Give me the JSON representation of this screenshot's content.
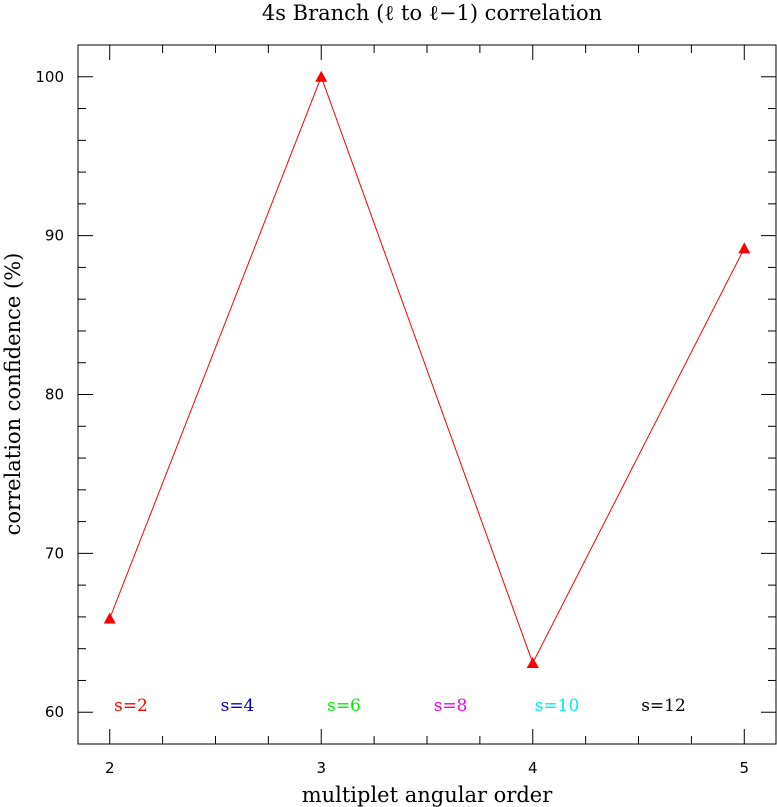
{
  "chart_data": {
    "type": "line",
    "title": "4s Branch (ℓ to ℓ−1) correlation",
    "xlabel": "multiplet angular order",
    "ylabel": "correlation confidence (%)",
    "xlim": [
      1.85,
      5.15
    ],
    "ylim": [
      58,
      102
    ],
    "xticks": [
      2,
      3,
      4,
      5
    ],
    "yticks": [
      60,
      70,
      80,
      90,
      100
    ],
    "grid": false,
    "series": [
      {
        "color": "#ff0000",
        "marker": "triangle",
        "x": [
          2,
          3,
          4,
          5
        ],
        "y": [
          65.9,
          100.0,
          63.1,
          89.2
        ]
      }
    ],
    "legend": [
      {
        "label": "s=2",
        "color": "#ff0000"
      },
      {
        "label": "s=4",
        "color": "#0000cc"
      },
      {
        "label": "s=6",
        "color": "#00ee00"
      },
      {
        "label": "s=8",
        "color": "#ee00ee"
      },
      {
        "label": "s=10",
        "color": "#00eeee"
      },
      {
        "label": "s=12",
        "color": "#000000"
      }
    ],
    "legend_position": "bottom, inside plot"
  }
}
